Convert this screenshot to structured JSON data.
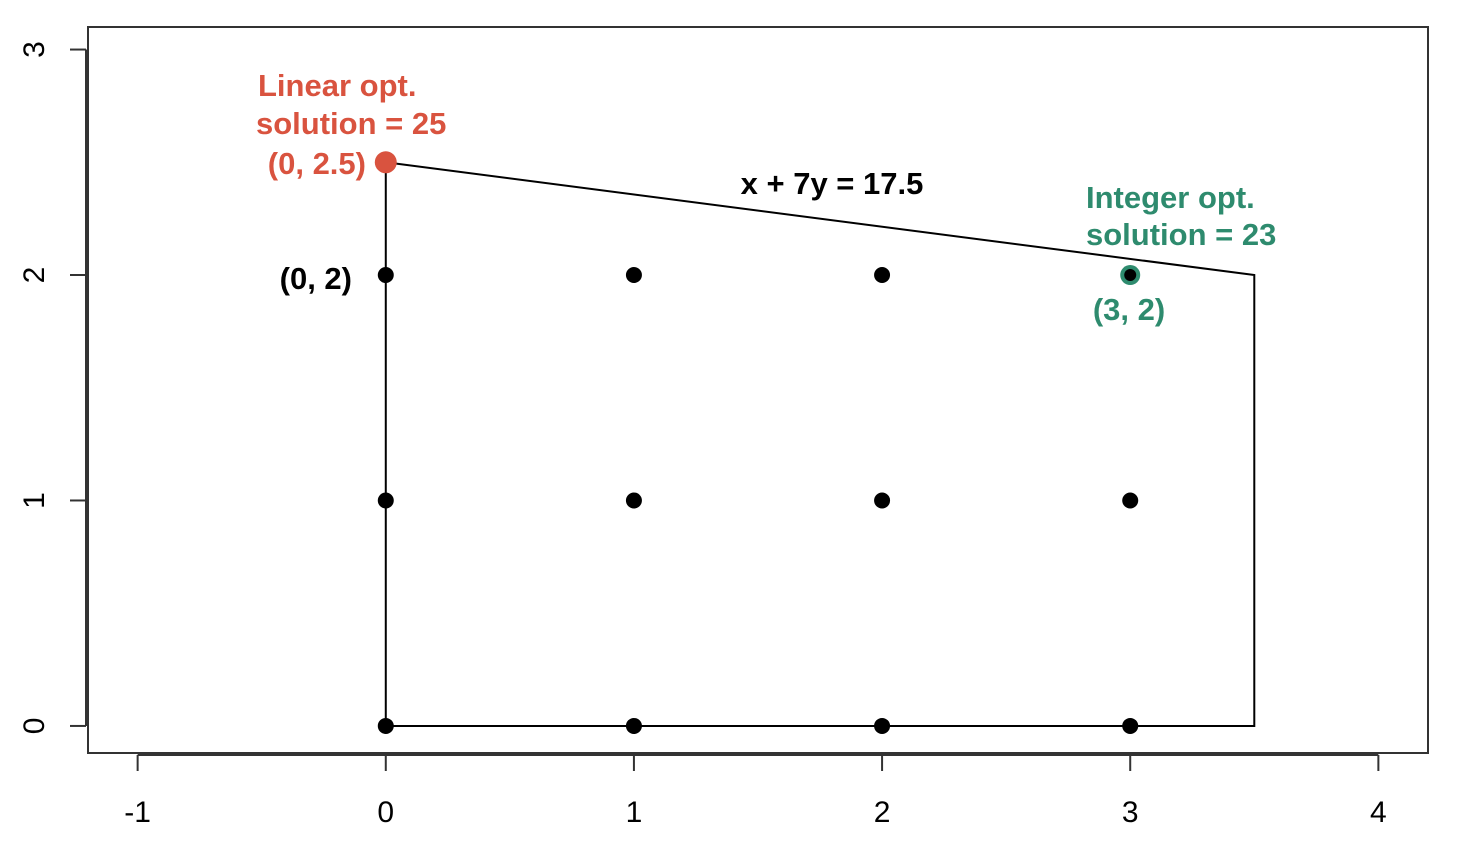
{
  "chart_data": {
    "type": "scatter",
    "xlim": [
      -1.2,
      4.2
    ],
    "ylim": [
      -0.12,
      3.1
    ],
    "x_ticks": [
      "-1",
      "0",
      "1",
      "2",
      "3",
      "4"
    ],
    "y_ticks": [
      "0",
      "1",
      "2",
      "3"
    ],
    "xlabel": "",
    "ylabel": "",
    "grid": false,
    "feasible_region": [
      [
        0,
        0
      ],
      [
        0,
        2.5
      ],
      [
        3.5,
        2
      ],
      [
        3.5,
        0
      ]
    ],
    "integer_points": [
      [
        0,
        0
      ],
      [
        1,
        0
      ],
      [
        2,
        0
      ],
      [
        3,
        0
      ],
      [
        0,
        1
      ],
      [
        1,
        1
      ],
      [
        2,
        1
      ],
      [
        3,
        1
      ],
      [
        0,
        2
      ],
      [
        1,
        2
      ],
      [
        2,
        2
      ],
      [
        3,
        2
      ]
    ],
    "linear_optimum": {
      "x": 0,
      "y": 2.5,
      "color": "#d9533f"
    },
    "integer_optimum": {
      "x": 3,
      "y": 2,
      "color": "#2e8b6e"
    },
    "colors": {
      "point": "#000000",
      "linear": "#d9533f",
      "integer": "#2e8b6e"
    },
    "annotations": {
      "constraint_label": "x + 7y = 17.5",
      "linear_line1": "Linear opt.",
      "linear_line2": "solution = 25",
      "linear_coord": "(0, 2.5)",
      "integer_line1": "Integer opt.",
      "integer_line2": "solution = 23",
      "integer_coord": "(3, 2)",
      "point_label_02": "(0, 2)"
    }
  }
}
